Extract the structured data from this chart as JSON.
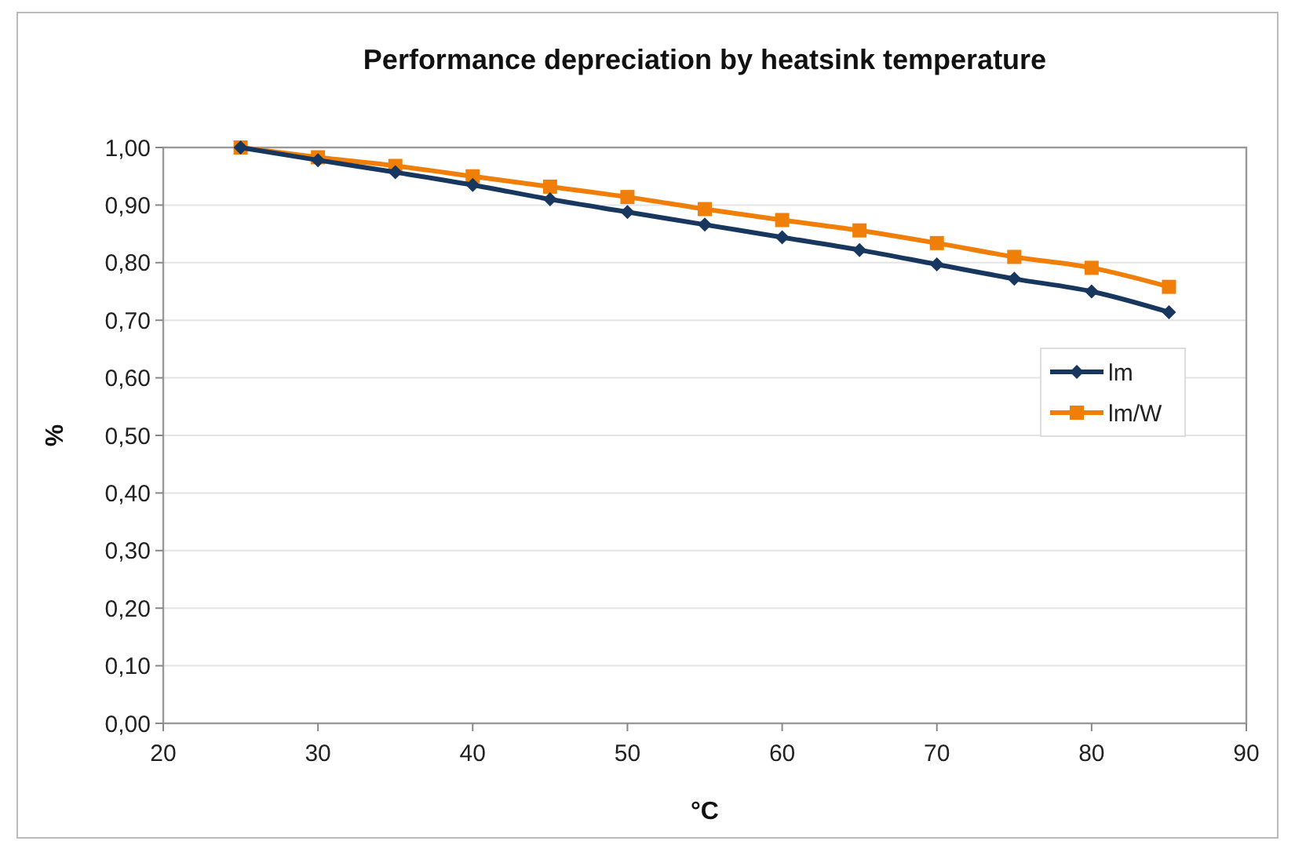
{
  "chart_data": {
    "type": "line",
    "title": "Performance depreciation by heatsink temperature",
    "xlabel": "°C",
    "ylabel": "%",
    "x": [
      25,
      30,
      35,
      40,
      45,
      50,
      55,
      60,
      65,
      70,
      75,
      80,
      85
    ],
    "series": [
      {
        "name": "lm",
        "color": "#17375e",
        "marker": "diamond",
        "values": [
          1.0,
          0.978,
          0.957,
          0.935,
          0.91,
          0.888,
          0.866,
          0.844,
          0.822,
          0.797,
          0.772,
          0.75,
          0.714
        ]
      },
      {
        "name": "lm/W",
        "color": "#f07f09",
        "marker": "square",
        "values": [
          1.0,
          0.983,
          0.968,
          0.95,
          0.932,
          0.914,
          0.893,
          0.874,
          0.856,
          0.834,
          0.81,
          0.791,
          0.758
        ]
      }
    ],
    "xlim": [
      20,
      90
    ],
    "xticks": [
      20,
      30,
      40,
      50,
      60,
      70,
      80,
      90
    ],
    "ylim": [
      0,
      1
    ],
    "yticks": [
      {
        "value": 0,
        "label": "0,00"
      },
      {
        "value": 0.1,
        "label": "0,10"
      },
      {
        "value": 0.2,
        "label": "0,20"
      },
      {
        "value": 0.3,
        "label": "0,30"
      },
      {
        "value": 0.4,
        "label": "0,40"
      },
      {
        "value": 0.5,
        "label": "0,50"
      },
      {
        "value": 0.6,
        "label": "0,60"
      },
      {
        "value": 0.7,
        "label": "0,70"
      },
      {
        "value": 0.8,
        "label": "0,80"
      },
      {
        "value": 0.9,
        "label": "0,90"
      },
      {
        "value": 1,
        "label": "1,00"
      }
    ],
    "grid": "y",
    "legend": "right"
  }
}
